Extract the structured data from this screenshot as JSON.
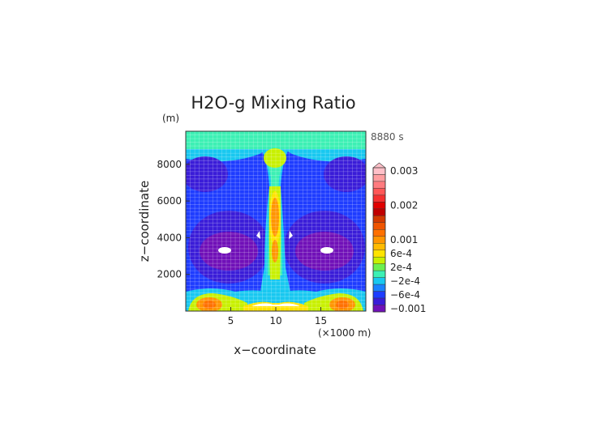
{
  "chart_data": {
    "type": "heatmap",
    "title": "H2O-g Mixing Ratio",
    "time_label": "8880 s",
    "xlabel": "x−coordinate",
    "ylabel": "z−coordinate",
    "x_unit": "(×1000 m)",
    "y_unit": "(m)",
    "x_ticks": [
      5,
      10,
      15
    ],
    "y_ticks": [
      2000,
      4000,
      6000,
      8000
    ],
    "x_ticks_text": [
      "5",
      "10",
      "15"
    ],
    "y_ticks_text": [
      "2000",
      "4000",
      "6000",
      "8000"
    ],
    "xlim": [
      0,
      20
    ],
    "ylim": [
      0,
      9800
    ],
    "grid": true,
    "colorbar": {
      "labels": [
        {
          "text": "0.003",
          "value": 0.003
        },
        {
          "text": "0.002",
          "value": 0.002
        },
        {
          "text": "0.001",
          "value": 0.001
        },
        {
          "text": "6e-4",
          "value": 0.0006
        },
        {
          "text": "2e-4",
          "value": 0.0002
        },
        {
          "text": "−2e-4",
          "value": -0.0002
        },
        {
          "text": "−6e-4",
          "value": -0.0006
        },
        {
          "text": "−0.001",
          "value": -0.001
        }
      ],
      "levels_top_to_bottom": [
        {
          "value": 0.003,
          "color": "#ffc0c8"
        },
        {
          "value": 0.0028,
          "color": "#ff9ea0"
        },
        {
          "value": 0.0026,
          "color": "#ff7b7f"
        },
        {
          "value": 0.0024,
          "color": "#ff5757"
        },
        {
          "value": 0.0022,
          "color": "#f53030"
        },
        {
          "value": 0.002,
          "color": "#e00000"
        },
        {
          "value": 0.0018,
          "color": "#c00000"
        },
        {
          "value": 0.0016,
          "color": "#d43a00"
        },
        {
          "value": 0.0014,
          "color": "#ef5500"
        },
        {
          "value": 0.0012,
          "color": "#ff7000"
        },
        {
          "value": 0.001,
          "color": "#ff9500"
        },
        {
          "value": 0.0008,
          "color": "#ffbb00"
        },
        {
          "value": 0.0006,
          "color": "#ffe400"
        },
        {
          "value": 0.0004,
          "color": "#c8f000"
        },
        {
          "value": 0.0002,
          "color": "#6cf050"
        },
        {
          "value": 0.0,
          "color": "#3cf0b4"
        },
        {
          "value": -0.0002,
          "color": "#18c8f0"
        },
        {
          "value": -0.0004,
          "color": "#1a82ff"
        },
        {
          "value": -0.0006,
          "color": "#1e3cff"
        },
        {
          "value": -0.0008,
          "color": "#3a1cd8"
        },
        {
          "value": -0.001,
          "color": "#7010b8"
        }
      ]
    },
    "field_summary": [
      {
        "region": "top layer (z > ~8800 m)",
        "value": 0.0
      },
      {
        "region": "upper column edges",
        "value": -0.0006
      },
      {
        "region": "central updraft column (x ~ 10)",
        "value": 0.001
      },
      {
        "region": "column core z 4500-6500 m",
        "value": 0.0012
      },
      {
        "region": "mid-level flanks (x ~ 4 and x ~ 16, z ~ 3500 m)",
        "value": -0.001
      },
      {
        "region": "near-surface outflow maxima (x ~ 4 and x ~ 16, z ~ 300 m)",
        "value": 0.0012
      },
      {
        "region": "undefined patches (white)",
        "value": null
      }
    ]
  }
}
